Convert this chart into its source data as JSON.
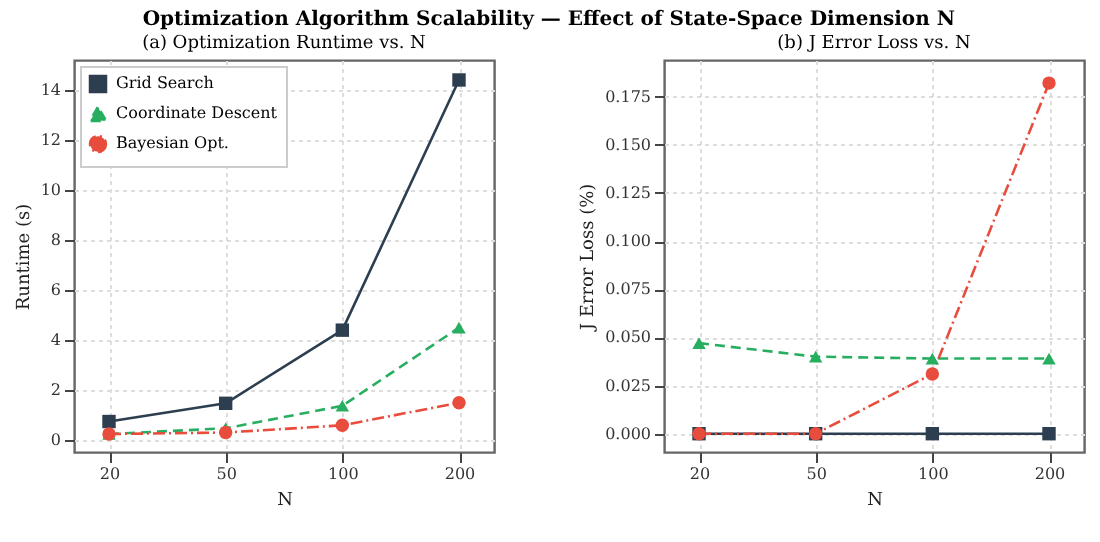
{
  "chart_data": [
    {
      "type": "line",
      "title": "(a) Optimization Runtime vs. N",
      "annotations": [
        "Optimization Algorithm Scalability — Effect of State-Space Dimension N"
      ],
      "xlabel": "N",
      "ylabel": "Runtime (s)",
      "categories": [
        "20",
        "50",
        "100",
        "200"
      ],
      "ylim": [
        -0.5,
        15.2
      ],
      "yticks": [
        0,
        2,
        4,
        6,
        8,
        10,
        12,
        14
      ],
      "grid": true,
      "legend": "top left",
      "series": [
        {
          "name": "Grid Search",
          "color": "#2c3e50",
          "marker": "square",
          "line_style": "solid",
          "values": [
            0.72,
            1.45,
            4.38,
            14.4
          ]
        },
        {
          "name": "Coordinate Descent",
          "color": "#27ae60",
          "marker": "triangle",
          "line_style": "dashed",
          "values": [
            0.22,
            0.45,
            1.35,
            4.48
          ]
        },
        {
          "name": "Bayesian Opt.",
          "color": "#e74c3c",
          "marker": "circle",
          "line_style": "dashdot",
          "values": [
            0.22,
            0.28,
            0.57,
            1.47
          ]
        }
      ]
    },
    {
      "type": "line",
      "title": "(b) J Error Loss vs. N",
      "xlabel": "N",
      "ylabel": "J Error Loss (%)",
      "categories": [
        "20",
        "50",
        "100",
        "200"
      ],
      "ylim": [
        -0.0095,
        0.194
      ],
      "yticks": [
        {
          "value": 0,
          "label": "0.000"
        },
        {
          "value": 0.025,
          "label": "0.025"
        },
        {
          "value": 0.05,
          "label": "0.050"
        },
        {
          "value": 0.075,
          "label": "0.075"
        },
        {
          "value": 0.1,
          "label": "0.100"
        },
        {
          "value": 0.125,
          "label": "0.125"
        },
        {
          "value": 0.15,
          "label": "0.150"
        },
        {
          "value": 0.175,
          "label": "0.175"
        }
      ],
      "grid": true,
      "legend": "top left",
      "series": [
        {
          "name": "Grid Search",
          "color": "#2c3e50",
          "marker": "square",
          "line_style": "solid",
          "values": [
            0,
            0,
            0,
            0
          ]
        },
        {
          "name": "Coordinate Descent",
          "color": "#27ae60",
          "marker": "triangle",
          "line_style": "dashed",
          "values": [
            0.047,
            0.04,
            0.039,
            0.039
          ]
        },
        {
          "name": "Bayesian Opt.",
          "color": "#e74c3c",
          "marker": "circle",
          "line_style": "dashdot",
          "values": [
            0,
            0,
            0.031,
            0.182
          ]
        }
      ]
    }
  ]
}
